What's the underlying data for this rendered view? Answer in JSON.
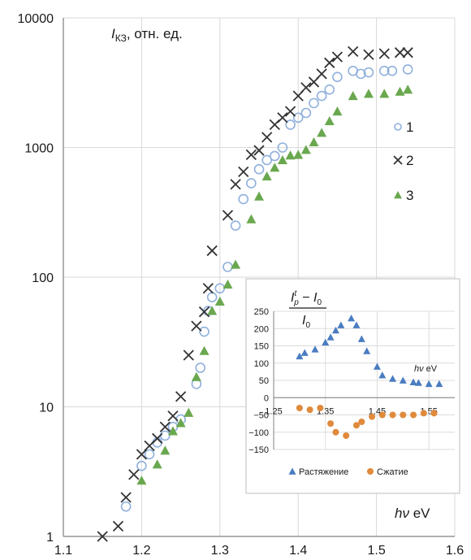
{
  "chart_data": [
    {
      "type": "scatter",
      "scale": "log-y",
      "xlim": [
        1.1,
        1.6
      ],
      "ylim": [
        1,
        10000
      ],
      "x_ticks": [
        "1.1",
        "1.2",
        "1.3",
        "1.4",
        "1.5",
        "1.6"
      ],
      "y_ticks": [
        "1",
        "10",
        "100",
        "1000",
        "10000"
      ],
      "grid": true,
      "ylabel_main": "I",
      "ylabel_sub": "КЗ",
      "ylabel_rest": ", отн. ед.",
      "xlabel_italic": "hν",
      "xlabel_unit": " eV",
      "legend_placement": "right",
      "series": [
        {
          "name": "1",
          "marker": "circle",
          "color": "#8fb0dc",
          "points": [
            [
              1.18,
              1.7
            ],
            [
              1.2,
              3.5
            ],
            [
              1.21,
              4.3
            ],
            [
              1.22,
              5.3
            ],
            [
              1.23,
              6.0
            ],
            [
              1.24,
              7.0
            ],
            [
              1.25,
              8.0
            ],
            [
              1.27,
              15.0
            ],
            [
              1.275,
              20.0
            ],
            [
              1.28,
              38.0
            ],
            [
              1.285,
              55.0
            ],
            [
              1.29,
              70.0
            ],
            [
              1.3,
              82.0
            ],
            [
              1.31,
              120.0
            ],
            [
              1.32,
              250.0
            ],
            [
              1.33,
              400.0
            ],
            [
              1.34,
              530.0
            ],
            [
              1.35,
              680.0
            ],
            [
              1.36,
              800.0
            ],
            [
              1.37,
              860.0
            ],
            [
              1.38,
              1000.0
            ],
            [
              1.39,
              1500.0
            ],
            [
              1.4,
              1700.0
            ],
            [
              1.41,
              1850.0
            ],
            [
              1.42,
              2200.0
            ],
            [
              1.43,
              2500.0
            ],
            [
              1.44,
              2800.0
            ],
            [
              1.45,
              3500.0
            ],
            [
              1.47,
              3900.0
            ],
            [
              1.48,
              3700.0
            ],
            [
              1.49,
              3800.0
            ],
            [
              1.51,
              3900.0
            ],
            [
              1.52,
              3900.0
            ],
            [
              1.54,
              4000.0
            ]
          ]
        },
        {
          "name": "2",
          "marker": "cross",
          "color": "#333333",
          "points": [
            [
              1.15,
              1.0
            ],
            [
              1.17,
              1.2
            ],
            [
              1.18,
              2.0
            ],
            [
              1.19,
              3.0
            ],
            [
              1.2,
              4.3
            ],
            [
              1.21,
              5.0
            ],
            [
              1.22,
              5.7
            ],
            [
              1.23,
              7.0
            ],
            [
              1.24,
              8.5
            ],
            [
              1.25,
              12.0
            ],
            [
              1.26,
              25.0
            ],
            [
              1.27,
              42.0
            ],
            [
              1.28,
              54.0
            ],
            [
              1.285,
              82.0
            ],
            [
              1.29,
              160.0
            ],
            [
              1.31,
              300.0
            ],
            [
              1.32,
              520.0
            ],
            [
              1.33,
              650.0
            ],
            [
              1.34,
              880.0
            ],
            [
              1.35,
              950.0
            ],
            [
              1.36,
              1200.0
            ],
            [
              1.37,
              1500.0
            ],
            [
              1.38,
              1700.0
            ],
            [
              1.39,
              1900.0
            ],
            [
              1.4,
              2500.0
            ],
            [
              1.41,
              2900.0
            ],
            [
              1.42,
              3200.0
            ],
            [
              1.43,
              3700.0
            ],
            [
              1.44,
              4500.0
            ],
            [
              1.45,
              5000.0
            ],
            [
              1.47,
              5500.0
            ],
            [
              1.49,
              5200.0
            ],
            [
              1.51,
              5300.0
            ],
            [
              1.53,
              5400.0
            ],
            [
              1.54,
              5400.0
            ]
          ]
        },
        {
          "name": "3",
          "marker": "triangle",
          "color": "#6aa84f",
          "points": [
            [
              1.2,
              2.7
            ],
            [
              1.22,
              3.6
            ],
            [
              1.23,
              4.6
            ],
            [
              1.24,
              6.5
            ],
            [
              1.25,
              7.5
            ],
            [
              1.26,
              9.0
            ],
            [
              1.27,
              17.0
            ],
            [
              1.28,
              27.0
            ],
            [
              1.29,
              55.0
            ],
            [
              1.3,
              65.0
            ],
            [
              1.31,
              88.0
            ],
            [
              1.32,
              125.0
            ],
            [
              1.34,
              280.0
            ],
            [
              1.35,
              420.0
            ],
            [
              1.36,
              600.0
            ],
            [
              1.37,
              700.0
            ],
            [
              1.38,
              800.0
            ],
            [
              1.39,
              870.0
            ],
            [
              1.4,
              880.0
            ],
            [
              1.41,
              960.0
            ],
            [
              1.42,
              1100.0
            ],
            [
              1.43,
              1300.0
            ],
            [
              1.44,
              1600.0
            ],
            [
              1.45,
              1900.0
            ],
            [
              1.47,
              2500.0
            ],
            [
              1.49,
              2600.0
            ],
            [
              1.51,
              2600.0
            ],
            [
              1.53,
              2700.0
            ],
            [
              1.54,
              2800.0
            ]
          ]
        }
      ]
    },
    {
      "type": "scatter",
      "role": "inset",
      "xlim": [
        1.25,
        1.6
      ],
      "ylim": [
        -150,
        250
      ],
      "x_ticks": [
        "1.25",
        "1.35",
        "1.45",
        "1.55"
      ],
      "y_ticks": [
        "250",
        "200",
        "150",
        "100",
        "50",
        "0",
        "−50",
        "−100",
        "−150"
      ],
      "grid": true,
      "formula_num_main": "I",
      "formula_num_sub": "p",
      "formula_num_sup": "t",
      "formula_minus": " − ",
      "formula_i0": "I",
      "formula_zero": "0",
      "xlabel_italic": "hν",
      "xlabel_unit": " eV",
      "legend_placement": "bottom",
      "series": [
        {
          "name": "Растяжение",
          "marker": "triangle",
          "color": "#4a7cc0",
          "points": [
            [
              1.3,
              120.0
            ],
            [
              1.31,
              130.0
            ],
            [
              1.33,
              140.0
            ],
            [
              1.35,
              160.0
            ],
            [
              1.36,
              175.0
            ],
            [
              1.37,
              195.0
            ],
            [
              1.38,
              210.0
            ],
            [
              1.4,
              230.0
            ],
            [
              1.41,
              210.0
            ],
            [
              1.42,
              170.0
            ],
            [
              1.43,
              135.0
            ],
            [
              1.45,
              90.0
            ],
            [
              1.46,
              65.0
            ],
            [
              1.48,
              55.0
            ],
            [
              1.5,
              50.0
            ],
            [
              1.52,
              45.0
            ],
            [
              1.53,
              43.0
            ],
            [
              1.55,
              40.0
            ],
            [
              1.57,
              40.0
            ]
          ]
        },
        {
          "name": "Сжатие",
          "marker": "circle",
          "color": "#e08a3c",
          "points": [
            [
              1.3,
              -30.0
            ],
            [
              1.32,
              -35.0
            ],
            [
              1.34,
              -30.0
            ],
            [
              1.36,
              -75.0
            ],
            [
              1.37,
              -100.0
            ],
            [
              1.39,
              -110.0
            ],
            [
              1.41,
              -80.0
            ],
            [
              1.42,
              -70.0
            ],
            [
              1.44,
              -55.0
            ],
            [
              1.46,
              -50.0
            ],
            [
              1.48,
              -50.0
            ],
            [
              1.5,
              -50.0
            ],
            [
              1.52,
              -50.0
            ],
            [
              1.54,
              -45.0
            ],
            [
              1.56,
              -45.0
            ]
          ]
        }
      ]
    }
  ]
}
